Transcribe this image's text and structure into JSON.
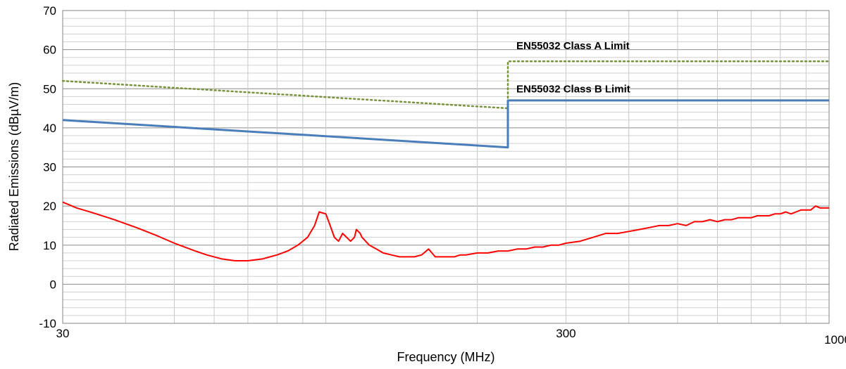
{
  "chart_data": {
    "type": "line",
    "xlabel": "Frequency (MHz)",
    "ylabel": "Radiated Emissions (dBµV/m)",
    "x_scale": "log",
    "xlim": [
      30,
      1000
    ],
    "ylim": [
      -10,
      70
    ],
    "grid": true,
    "y_ticks": [
      "70",
      "60",
      "50",
      "40",
      "30",
      "20",
      "10",
      "0",
      "-10"
    ],
    "x_tick_labels": [
      {
        "value": 30,
        "label": "30"
      },
      {
        "value": 300,
        "label": "300"
      },
      {
        "value": 1000,
        "label": "1000"
      }
    ],
    "annotations": [
      {
        "text": "EN55032 Class A Limit",
        "x": 230,
        "y": 61
      },
      {
        "text": "EN55032 Class B Limit",
        "x": 230,
        "y": 50
      }
    ],
    "series": [
      {
        "key": "class_a",
        "color": "#77933c",
        "style": "dotted",
        "x": [
          30,
          230,
          230,
          1000
        ],
        "y": [
          52,
          45,
          57,
          57
        ]
      },
      {
        "key": "class_b",
        "color": "#4a7ebb",
        "style": "solid",
        "x": [
          30,
          230,
          230,
          1000
        ],
        "y": [
          42,
          35,
          47,
          47
        ]
      },
      {
        "key": "measured",
        "color": "#ff0000",
        "style": "solid",
        "x": [
          30,
          32,
          35,
          38,
          42,
          46,
          50,
          55,
          58,
          62,
          66,
          70,
          75,
          80,
          84,
          88,
          92,
          95,
          97,
          100,
          102,
          104,
          106,
          108,
          110,
          112,
          114,
          115,
          117,
          118,
          120,
          122,
          124,
          126,
          130,
          135,
          140,
          145,
          150,
          155,
          160,
          165,
          170,
          175,
          180,
          185,
          190,
          200,
          210,
          220,
          230,
          240,
          250,
          260,
          270,
          280,
          290,
          300,
          320,
          340,
          360,
          380,
          400,
          420,
          440,
          460,
          480,
          500,
          520,
          540,
          560,
          580,
          600,
          620,
          640,
          660,
          680,
          700,
          720,
          740,
          760,
          780,
          800,
          820,
          840,
          860,
          880,
          900,
          920,
          940,
          960,
          980,
          1000
        ],
        "y": [
          21,
          19.5,
          18,
          16.5,
          14.5,
          12.5,
          10.5,
          8.5,
          7.5,
          6.5,
          6,
          6,
          6.5,
          7.5,
          8.5,
          10,
          12,
          15,
          18.5,
          18,
          15,
          12,
          11,
          13,
          12,
          11,
          12,
          14,
          13,
          12,
          11,
          10,
          9.5,
          9,
          8,
          7.5,
          7,
          7,
          7,
          7.5,
          9,
          7,
          7,
          7,
          7,
          7.5,
          7.5,
          8,
          8,
          8.5,
          8.5,
          9,
          9,
          9.5,
          9.5,
          10,
          10,
          10.5,
          11,
          12,
          13,
          13,
          13.5,
          14,
          14.5,
          15,
          15,
          15.5,
          15,
          16,
          16,
          16.5,
          16,
          16.5,
          16.5,
          17,
          17,
          17,
          17.5,
          17.5,
          17.5,
          18,
          18,
          18.5,
          18,
          18.5,
          19,
          19,
          19,
          20,
          19.5,
          19.5,
          19.5
        ]
      }
    ]
  }
}
